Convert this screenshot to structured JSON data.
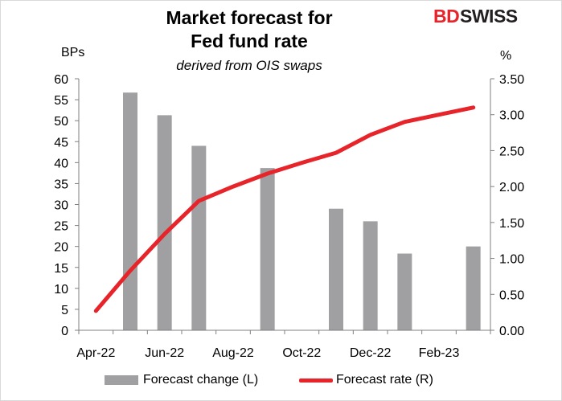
{
  "header": {
    "title_line1": "Market forecast for",
    "title_line2": "Fed fund rate",
    "subtitle": "derived from OIS swaps",
    "logo_part1": "BD",
    "logo_part2": "SWISS",
    "logo_colors": {
      "bd": "#e8242b",
      "swiss": "#231f20"
    }
  },
  "chart_data": {
    "type": "bar",
    "title": "Market forecast for Fed fund rate",
    "subtitle": "derived from OIS swaps",
    "left_axis": {
      "label": "BPs",
      "ylim": [
        0,
        60
      ],
      "ticks": [
        0,
        5,
        10,
        15,
        20,
        25,
        30,
        35,
        40,
        45,
        50,
        55,
        60
      ]
    },
    "right_axis": {
      "label": "%",
      "ylim": [
        0,
        3.5
      ],
      "ticks": [
        "0.00",
        "0.50",
        "1.00",
        "1.50",
        "2.00",
        "2.50",
        "3.00",
        "3.50"
      ]
    },
    "x_tick_labels": [
      "Apr-22",
      "Jun-22",
      "Aug-22",
      "Oct-22",
      "Dec-22",
      "Feb-23"
    ],
    "x_tick_positions": [
      0,
      2,
      4,
      6,
      8,
      10
    ],
    "x_domain": [
      -0.5,
      11.5
    ],
    "grid": false,
    "legend_position": "bottom",
    "series": [
      {
        "name": "Forecast change (L)",
        "type": "bar",
        "axis": "left",
        "color": "#a0a0a2",
        "points": [
          {
            "x": 1,
            "y": 56.7
          },
          {
            "x": 2,
            "y": 51.3
          },
          {
            "x": 3,
            "y": 44.0
          },
          {
            "x": 5,
            "y": 38.7
          },
          {
            "x": 7,
            "y": 29.0
          },
          {
            "x": 8,
            "y": 26.0
          },
          {
            "x": 9,
            "y": 18.3
          },
          {
            "x": 11,
            "y": 20.0
          }
        ]
      },
      {
        "name": "Forecast rate (R)",
        "type": "line",
        "axis": "right",
        "color": "#e8242b",
        "points": [
          {
            "x": 0,
            "y": 0.27
          },
          {
            "x": 1,
            "y": 0.83
          },
          {
            "x": 2,
            "y": 1.34
          },
          {
            "x": 3,
            "y": 1.8
          },
          {
            "x": 4,
            "y": 2.0
          },
          {
            "x": 5,
            "y": 2.18
          },
          {
            "x": 6,
            "y": 2.33
          },
          {
            "x": 7,
            "y": 2.47
          },
          {
            "x": 8,
            "y": 2.72
          },
          {
            "x": 9,
            "y": 2.9
          },
          {
            "x": 10,
            "y": 3.0
          },
          {
            "x": 11,
            "y": 3.1
          }
        ]
      }
    ]
  }
}
